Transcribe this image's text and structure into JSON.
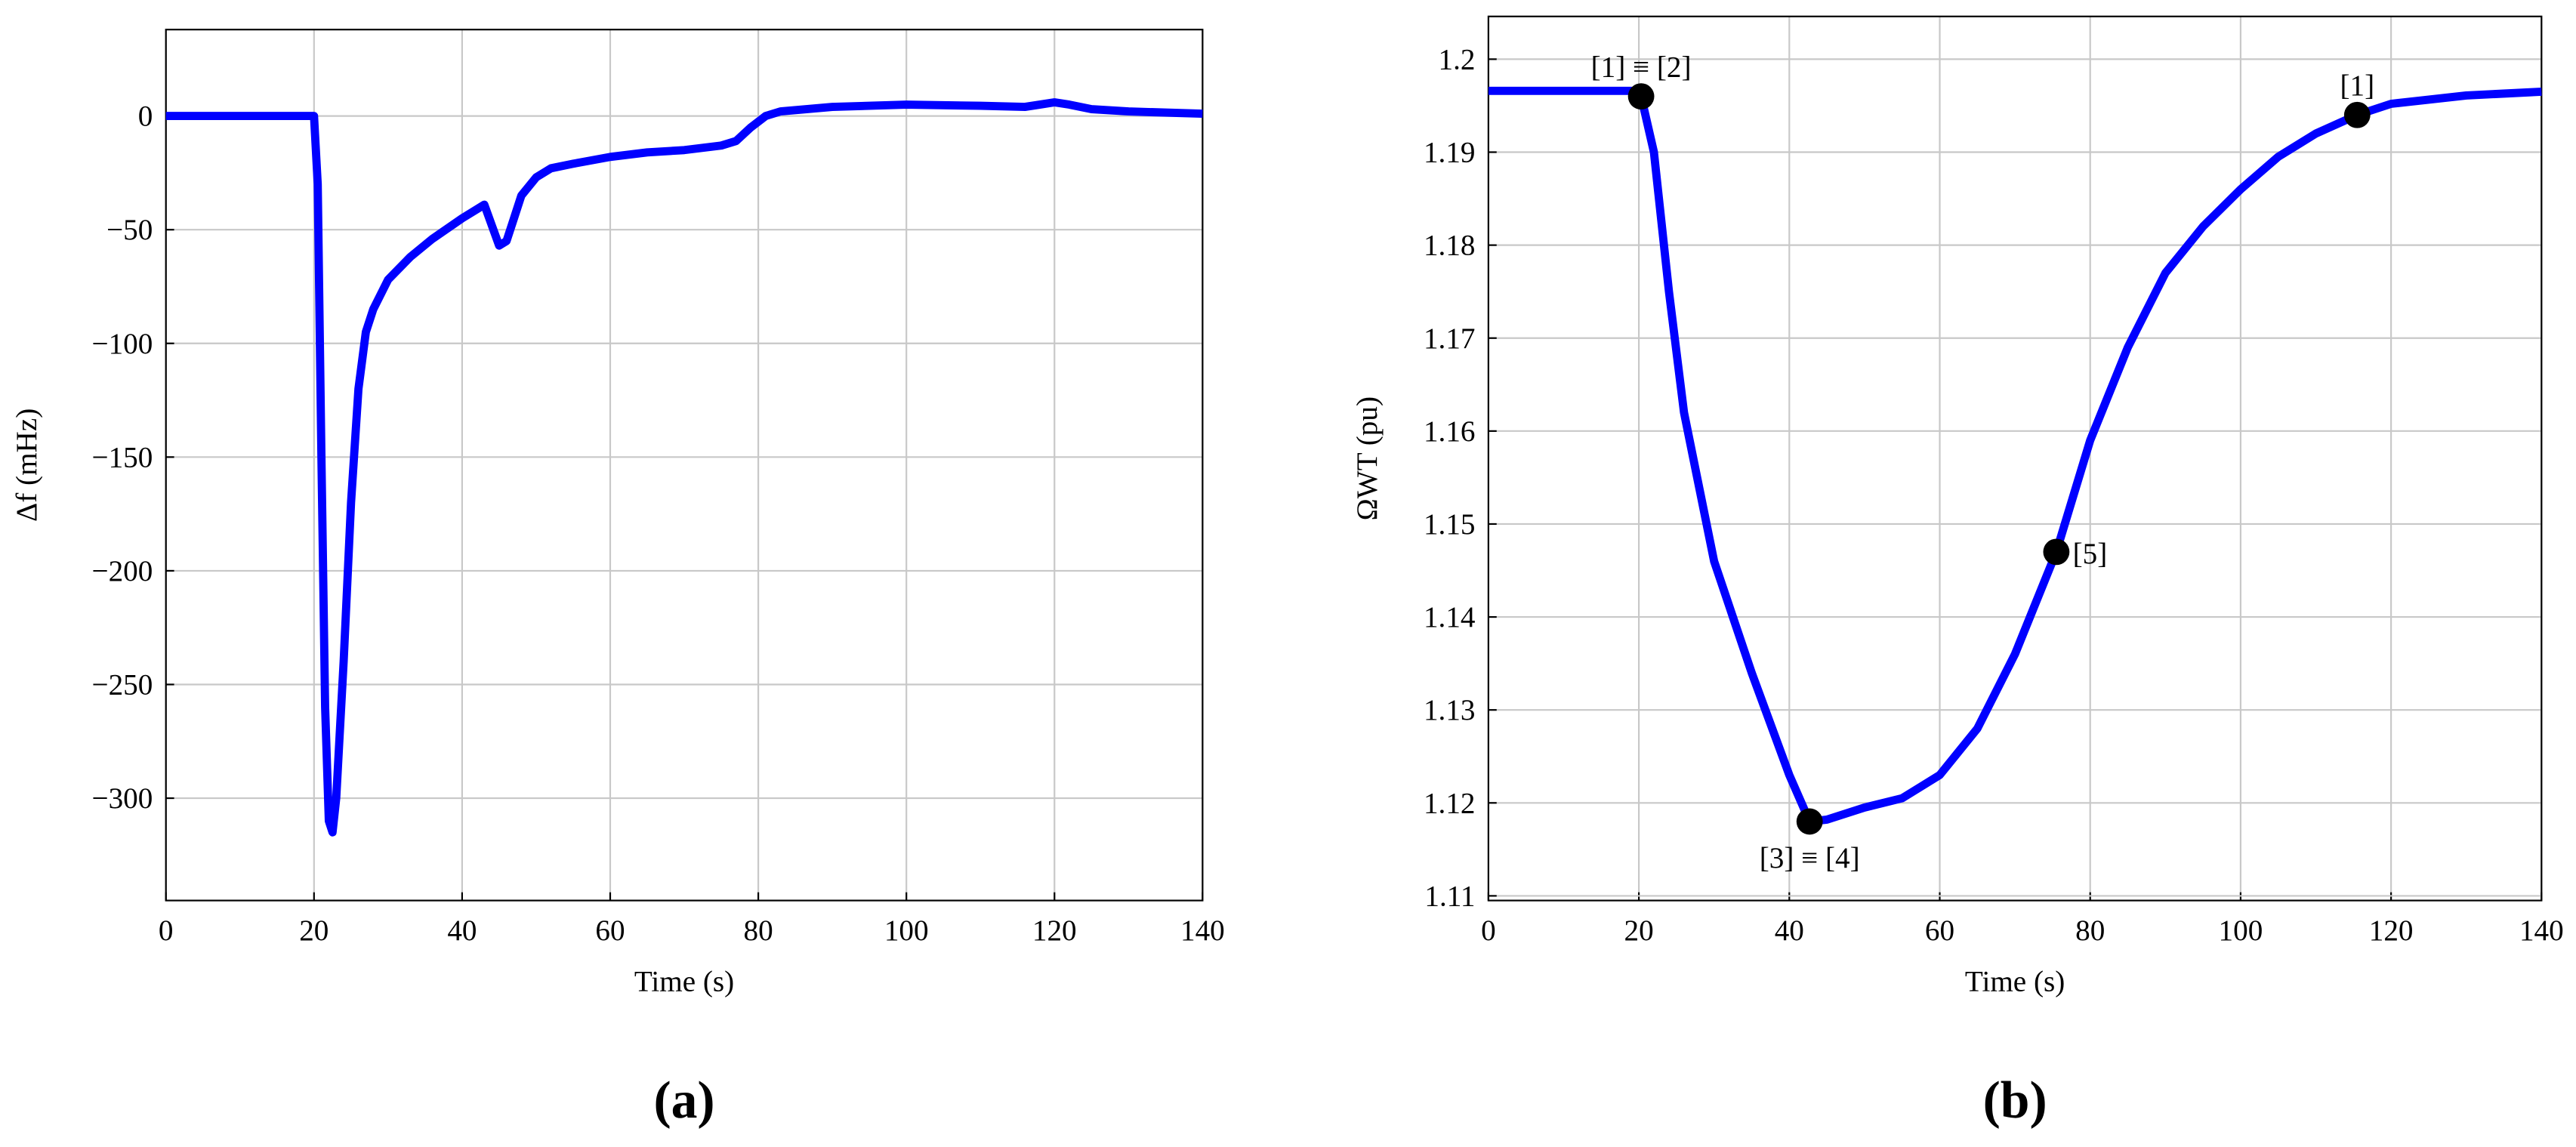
{
  "chart_data": [
    {
      "type": "line",
      "caption": "(a)",
      "xlabel": "Time (s)",
      "ylabel": "Δf (mHz)",
      "color": "#0000ff",
      "grid": true,
      "xlim": [
        0,
        140
      ],
      "ylim": [
        -345,
        38
      ],
      "xticks": [
        0,
        20,
        40,
        60,
        80,
        100,
        120,
        140
      ],
      "yticks": [
        {
          "value": -300,
          "label": "−300"
        },
        {
          "value": -250,
          "label": "−250"
        },
        {
          "value": -200,
          "label": "−200"
        },
        {
          "value": -150,
          "label": "−150"
        },
        {
          "value": -100,
          "label": "−100"
        },
        {
          "value": -50,
          "label": "−50"
        },
        0
      ],
      "x": [
        0,
        20,
        20.5,
        21,
        21.5,
        22,
        22.5,
        23,
        24,
        25,
        26,
        27,
        28,
        30,
        33,
        36,
        40,
        43,
        44,
        45,
        46,
        47,
        48,
        50,
        52,
        55,
        60,
        65,
        70,
        75,
        77,
        79,
        81,
        83,
        90,
        100,
        110,
        116,
        118,
        120,
        122,
        125,
        130,
        140
      ],
      "values": [
        0,
        0,
        -30,
        -150,
        -260,
        -310,
        -315,
        -300,
        -240,
        -170,
        -120,
        -95,
        -85,
        -72,
        -62,
        -54,
        -45,
        -39,
        -48,
        -57,
        -55,
        -45,
        -35,
        -27,
        -23,
        -21,
        -18,
        -16,
        -15,
        -13,
        -11,
        -5,
        0,
        2,
        4,
        5,
        4.5,
        4,
        5,
        6,
        5,
        3,
        2,
        1
      ]
    },
    {
      "type": "line",
      "caption": "(b)",
      "xlabel": "Time (s)",
      "ylabel": "ΩWT (pu)",
      "color": "#0000ff",
      "grid": true,
      "xlim": [
        0,
        140
      ],
      "ylim": [
        1.1095,
        1.2046
      ],
      "xticks": [
        0,
        20,
        40,
        60,
        80,
        100,
        120,
        140
      ],
      "yticks": [
        1.11,
        1.12,
        1.13,
        1.14,
        1.15,
        1.16,
        1.17,
        1.18,
        1.19,
        1.2
      ],
      "x": [
        0,
        20,
        20.3,
        22,
        24,
        26,
        30,
        35,
        40,
        42.7,
        45,
        50,
        55,
        60,
        65,
        70,
        75.5,
        80,
        85,
        90,
        95,
        100,
        105,
        110,
        115.5,
        120,
        130,
        140
      ],
      "values": [
        1.1966,
        1.1966,
        1.196,
        1.19,
        1.175,
        1.162,
        1.146,
        1.134,
        1.123,
        1.118,
        1.1182,
        1.1195,
        1.1205,
        1.123,
        1.128,
        1.136,
        1.147,
        1.159,
        1.169,
        1.177,
        1.182,
        1.186,
        1.1895,
        1.192,
        1.194,
        1.1952,
        1.1961,
        1.1965
      ],
      "annotations": [
        {
          "text": "[1] ≡ [2]",
          "x": 20.3,
          "y": 1.196,
          "position": "above"
        },
        {
          "text": "[3] ≡ [4]",
          "x": 42.7,
          "y": 1.118,
          "position": "below"
        },
        {
          "text": "[5]",
          "x": 75.5,
          "y": 1.147,
          "position": "right"
        },
        {
          "text": "[1]",
          "x": 115.5,
          "y": 1.194,
          "position": "above"
        }
      ]
    }
  ]
}
